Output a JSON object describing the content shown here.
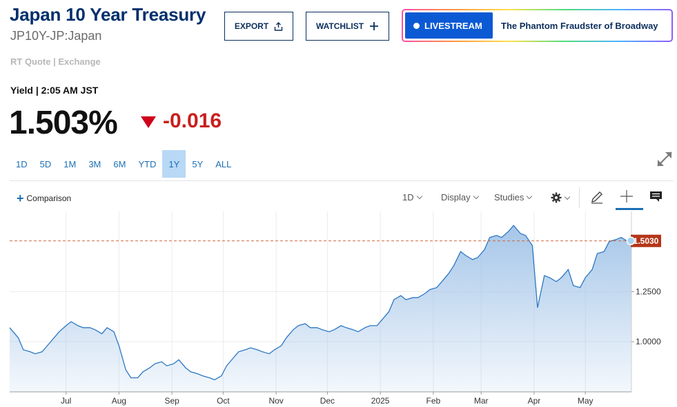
{
  "header": {
    "title": "Japan 10 Year Treasury",
    "symbol": "JP10Y-JP:Japan",
    "quote_source": "RT Quote | Exchange",
    "export_label": "EXPORT",
    "watchlist_label": "WATCHLIST",
    "livestream_label": "LIVESTREAM",
    "livestream_title": "The Phantom Fraudster of Broadway"
  },
  "quote": {
    "yield_line": "Yield | 2:05 AM JST",
    "last": "1.503%",
    "change": "-0.016",
    "direction": "down",
    "down_color": "#c8201d"
  },
  "ranges": [
    "1D",
    "5D",
    "1M",
    "3M",
    "6M",
    "YTD",
    "1Y",
    "5Y",
    "ALL"
  ],
  "active_range": "1Y",
  "toolbar": {
    "comparison_label": "Comparison",
    "interval_label": "1D",
    "display_label": "Display",
    "studies_label": "Studies",
    "icons": [
      "gear-icon",
      "pencil-icon",
      "crosshair-icon",
      "comment-icon",
      "expand-icon",
      "share-icon",
      "plus-icon"
    ]
  },
  "chart_data": {
    "type": "area",
    "series": [
      {
        "name": "JP10Y",
        "x": [
          "2024-05-29",
          "2024-06-03",
          "2024-06-06",
          "2024-06-10",
          "2024-06-13",
          "2024-06-17",
          "2024-06-20",
          "2024-06-24",
          "2024-06-27",
          "2024-07-01",
          "2024-07-04",
          "2024-07-08",
          "2024-07-11",
          "2024-07-15",
          "2024-07-18",
          "2024-07-22",
          "2024-07-25",
          "2024-07-29",
          "2024-08-01",
          "2024-08-05",
          "2024-08-08",
          "2024-08-12",
          "2024-08-15",
          "2024-08-19",
          "2024-08-22",
          "2024-08-26",
          "2024-08-29",
          "2024-09-02",
          "2024-09-05",
          "2024-09-09",
          "2024-09-12",
          "2024-09-16",
          "2024-09-19",
          "2024-09-23",
          "2024-09-26",
          "2024-09-30",
          "2024-10-03",
          "2024-10-07",
          "2024-10-10",
          "2024-10-14",
          "2024-10-17",
          "2024-10-21",
          "2024-10-24",
          "2024-10-28",
          "2024-10-31",
          "2024-11-04",
          "2024-11-07",
          "2024-11-11",
          "2024-11-14",
          "2024-11-18",
          "2024-11-21",
          "2024-11-25",
          "2024-11-28",
          "2024-12-02",
          "2024-12-05",
          "2024-12-09",
          "2024-12-12",
          "2024-12-16",
          "2024-12-19",
          "2024-12-23",
          "2024-12-26",
          "2024-12-30",
          "2025-01-02",
          "2025-01-06",
          "2025-01-09",
          "2025-01-13",
          "2025-01-16",
          "2025-01-20",
          "2025-01-23",
          "2025-01-27",
          "2025-01-30",
          "2025-02-03",
          "2025-02-06",
          "2025-02-10",
          "2025-02-13",
          "2025-02-17",
          "2025-02-20",
          "2025-02-24",
          "2025-02-27",
          "2025-03-03",
          "2025-03-06",
          "2025-03-10",
          "2025-03-13",
          "2025-03-17",
          "2025-03-20",
          "2025-03-24",
          "2025-03-27",
          "2025-03-31",
          "2025-04-03",
          "2025-04-07",
          "2025-04-10",
          "2025-04-14",
          "2025-04-17",
          "2025-04-21",
          "2025-04-24",
          "2025-04-28",
          "2025-05-01",
          "2025-05-05",
          "2025-05-08",
          "2025-05-12",
          "2025-05-15",
          "2025-05-19",
          "2025-05-22",
          "2025-05-26",
          "2025-05-28"
        ],
        "values": [
          1.07,
          1.02,
          0.96,
          0.95,
          0.94,
          0.95,
          0.98,
          1.02,
          1.05,
          1.08,
          1.1,
          1.08,
          1.07,
          1.07,
          1.06,
          1.04,
          1.07,
          1.05,
          0.98,
          0.86,
          0.82,
          0.82,
          0.85,
          0.87,
          0.89,
          0.9,
          0.88,
          0.89,
          0.91,
          0.87,
          0.85,
          0.84,
          0.83,
          0.82,
          0.81,
          0.83,
          0.88,
          0.92,
          0.95,
          0.96,
          0.97,
          0.96,
          0.95,
          0.94,
          0.96,
          0.98,
          1.02,
          1.06,
          1.08,
          1.09,
          1.07,
          1.07,
          1.06,
          1.05,
          1.06,
          1.08,
          1.07,
          1.06,
          1.05,
          1.07,
          1.08,
          1.08,
          1.11,
          1.15,
          1.21,
          1.23,
          1.21,
          1.22,
          1.22,
          1.24,
          1.26,
          1.27,
          1.3,
          1.34,
          1.38,
          1.45,
          1.43,
          1.41,
          1.42,
          1.46,
          1.52,
          1.53,
          1.52,
          1.55,
          1.58,
          1.54,
          1.53,
          1.48,
          1.17,
          1.33,
          1.32,
          1.3,
          1.32,
          1.36,
          1.28,
          1.27,
          1.32,
          1.36,
          1.44,
          1.45,
          1.5,
          1.51,
          1.52,
          1.5,
          1.503
        ]
      }
    ],
    "x_ticks": [
      "Jul",
      "Aug",
      "Sep",
      "Oct",
      "Nov",
      "Dec",
      "2025",
      "Feb",
      "Mar",
      "Apr",
      "May"
    ],
    "y_ticks": [
      "1.0000",
      "1.2500"
    ],
    "last_value_label": "1.5030",
    "ylim": [
      0.75,
      1.65
    ],
    "line_color": "#2a77c3",
    "fill_color": "#9cc0e6",
    "reference_line_color": "#d0643b",
    "last_label_color": "#b43618",
    "grid": true
  }
}
